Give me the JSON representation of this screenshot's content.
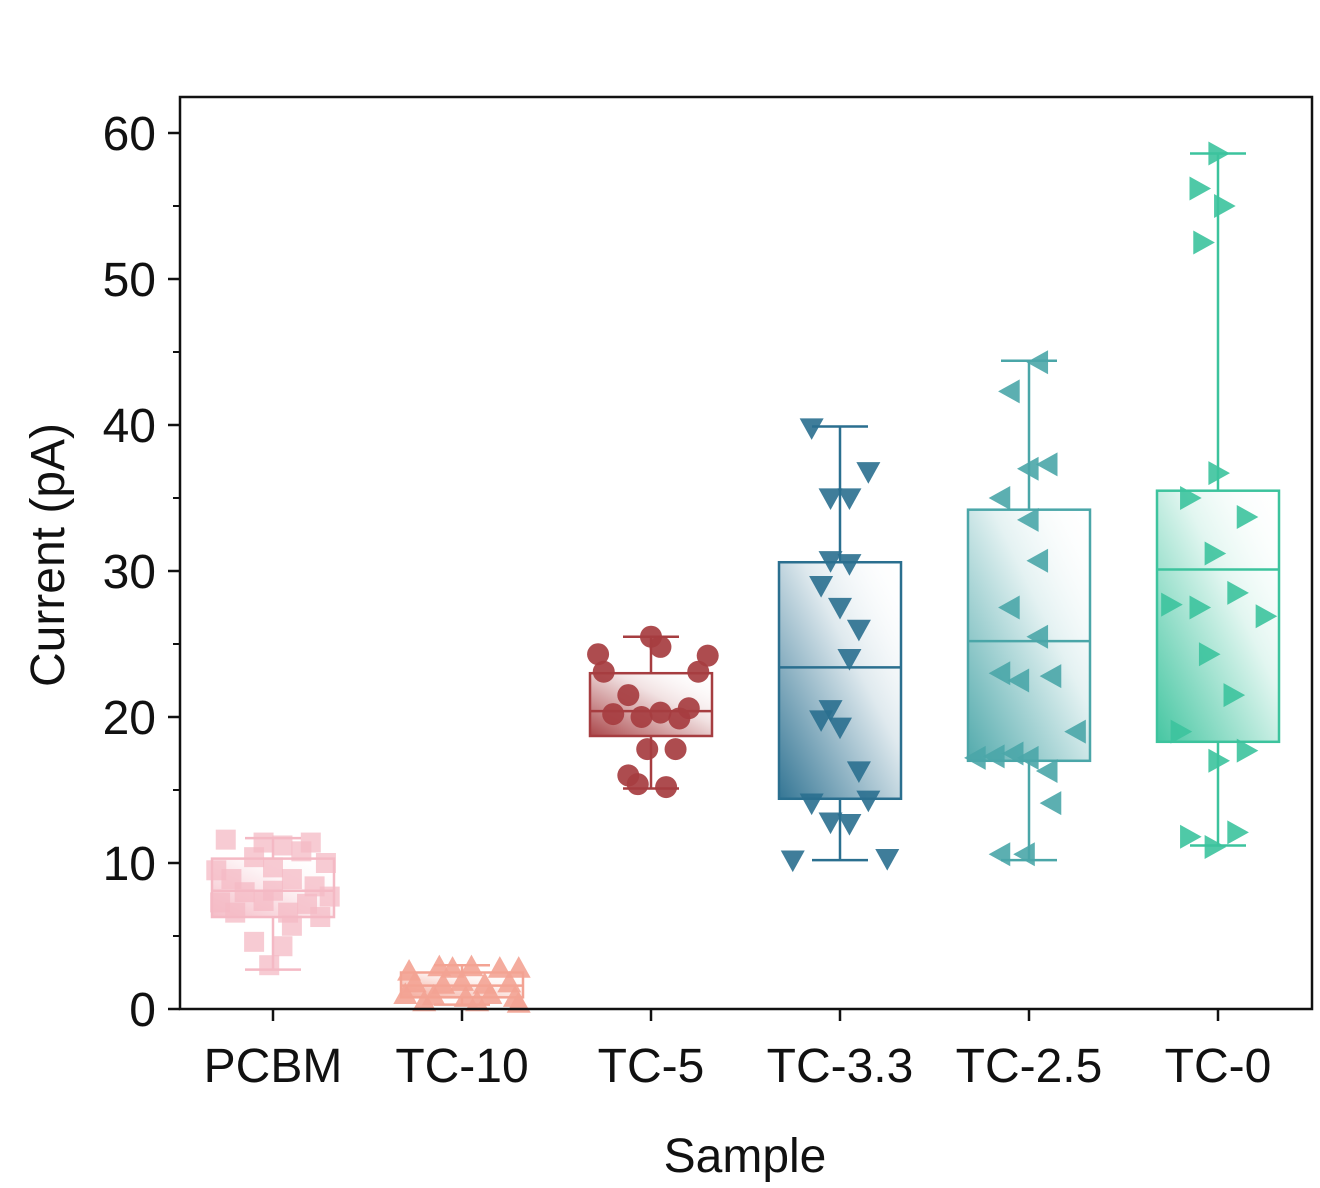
{
  "chart_data": {
    "type": "box",
    "xlabel": "Sample",
    "ylabel": "Current (pA)",
    "ylim": [
      0,
      62.5
    ],
    "yticks": [
      "0",
      "10",
      "20",
      "30",
      "40",
      "50",
      "60"
    ],
    "grid": false,
    "categories": [
      "PCBM",
      "TC-10",
      "TC-5",
      "TC-3.3",
      "TC-2.5",
      "TC-0"
    ],
    "series": [
      {
        "marker": "square",
        "color": "#f4b9c4",
        "box": {
          "min": 2.7,
          "q1": 6.3,
          "median": 8.1,
          "q3": 10.3,
          "max": 11.7
        },
        "points": [
          [
            -0.25,
            11.6
          ],
          [
            -0.05,
            11.4
          ],
          [
            0.05,
            11.2
          ],
          [
            0.2,
            11.4
          ],
          [
            0.15,
            10.8
          ],
          [
            -0.1,
            10.4
          ],
          [
            0.28,
            10.0
          ],
          [
            -0.3,
            9.5
          ],
          [
            0.0,
            9.7
          ],
          [
            -0.22,
            8.9
          ],
          [
            0.1,
            8.9
          ],
          [
            0.22,
            8.4
          ],
          [
            -0.15,
            8.0
          ],
          [
            0.0,
            8.1
          ],
          [
            0.3,
            7.7
          ],
          [
            -0.28,
            7.3
          ],
          [
            -0.05,
            7.4
          ],
          [
            0.18,
            7.2
          ],
          [
            -0.2,
            6.6
          ],
          [
            0.08,
            6.6
          ],
          [
            0.25,
            6.3
          ],
          [
            0.1,
            5.7
          ],
          [
            -0.1,
            4.6
          ],
          [
            0.05,
            4.3
          ],
          [
            -0.02,
            3.0
          ]
        ]
      },
      {
        "marker": "triangle-up",
        "color": "#f3a393",
        "box": {
          "min": 0.3,
          "q1": 0.8,
          "median": 1.6,
          "q3": 2.5,
          "max": 3.0
        },
        "points": [
          [
            -0.28,
            2.6
          ],
          [
            -0.12,
            2.9
          ],
          [
            -0.05,
            2.8
          ],
          [
            0.05,
            2.9
          ],
          [
            0.2,
            2.8
          ],
          [
            0.3,
            2.8
          ],
          [
            -0.25,
            1.8
          ],
          [
            -0.1,
            1.7
          ],
          [
            0.0,
            1.9
          ],
          [
            0.12,
            1.7
          ],
          [
            0.25,
            1.8
          ],
          [
            -0.3,
            1.0
          ],
          [
            -0.15,
            0.9
          ],
          [
            0.02,
            0.8
          ],
          [
            0.15,
            1.0
          ],
          [
            0.28,
            0.8
          ],
          [
            -0.2,
            0.5
          ],
          [
            0.08,
            0.5
          ],
          [
            0.3,
            0.4
          ]
        ]
      },
      {
        "marker": "circle",
        "color": "#a63d40",
        "box": {
          "min": 15.1,
          "q1": 18.7,
          "median": 20.4,
          "q3": 23.0,
          "max": 25.5
        },
        "points": [
          [
            0.0,
            25.5
          ],
          [
            0.05,
            24.8
          ],
          [
            -0.28,
            24.3
          ],
          [
            0.3,
            24.2
          ],
          [
            -0.25,
            23.1
          ],
          [
            0.25,
            23.1
          ],
          [
            -0.12,
            21.5
          ],
          [
            0.2,
            20.6
          ],
          [
            -0.2,
            20.2
          ],
          [
            -0.05,
            20.0
          ],
          [
            0.05,
            20.3
          ],
          [
            0.15,
            19.9
          ],
          [
            -0.02,
            17.8
          ],
          [
            0.13,
            17.8
          ],
          [
            -0.12,
            16.0
          ],
          [
            -0.07,
            15.4
          ],
          [
            0.08,
            15.2
          ]
        ]
      },
      {
        "marker": "triangle-down",
        "color": "#2a6f8f",
        "box": {
          "min": 10.2,
          "q1": 14.4,
          "median": 23.4,
          "q3": 30.6,
          "max": 39.9
        },
        "points": [
          [
            -0.15,
            39.8
          ],
          [
            0.15,
            36.8
          ],
          [
            -0.05,
            35.0
          ],
          [
            0.05,
            35.0
          ],
          [
            -0.05,
            30.7
          ],
          [
            0.05,
            30.5
          ],
          [
            -0.1,
            29.0
          ],
          [
            0.0,
            27.5
          ],
          [
            0.1,
            26.0
          ],
          [
            0.05,
            24.0
          ],
          [
            -0.05,
            20.5
          ],
          [
            -0.1,
            19.8
          ],
          [
            0.0,
            19.3
          ],
          [
            0.1,
            16.3
          ],
          [
            -0.15,
            14.1
          ],
          [
            0.15,
            14.3
          ],
          [
            -0.05,
            12.8
          ],
          [
            0.05,
            12.7
          ],
          [
            -0.25,
            10.2
          ],
          [
            0.25,
            10.3
          ]
        ]
      },
      {
        "marker": "triangle-left",
        "color": "#4aa6a8",
        "box": {
          "min": 10.2,
          "q1": 17.0,
          "median": 25.2,
          "q3": 34.2,
          "max": 44.4
        },
        "points": [
          [
            0.05,
            44.3
          ],
          [
            -0.1,
            42.3
          ],
          [
            0.0,
            37.0
          ],
          [
            0.1,
            37.3
          ],
          [
            -0.15,
            35.0
          ],
          [
            0.0,
            33.5
          ],
          [
            0.05,
            30.7
          ],
          [
            -0.1,
            27.5
          ],
          [
            0.05,
            25.5
          ],
          [
            -0.15,
            23.0
          ],
          [
            -0.05,
            22.5
          ],
          [
            0.12,
            22.8
          ],
          [
            0.25,
            19.0
          ],
          [
            -0.28,
            17.2
          ],
          [
            -0.18,
            17.3
          ],
          [
            -0.08,
            17.5
          ],
          [
            0.0,
            17.2
          ],
          [
            0.1,
            16.3
          ],
          [
            0.12,
            14.1
          ],
          [
            -0.15,
            10.6
          ],
          [
            -0.02,
            10.6
          ]
        ]
      },
      {
        "marker": "triangle-right",
        "color": "#3cc39d",
        "box": {
          "min": 11.2,
          "q1": 18.3,
          "median": 30.1,
          "q3": 35.5,
          "max": 58.6
        },
        "points": [
          [
            0.0,
            58.6
          ],
          [
            -0.1,
            56.2
          ],
          [
            0.03,
            55.0
          ],
          [
            -0.08,
            52.5
          ],
          [
            0.0,
            36.7
          ],
          [
            -0.15,
            35.0
          ],
          [
            0.15,
            33.7
          ],
          [
            -0.02,
            31.2
          ],
          [
            -0.25,
            27.7
          ],
          [
            -0.1,
            27.5
          ],
          [
            0.1,
            28.5
          ],
          [
            0.25,
            26.9
          ],
          [
            -0.05,
            24.3
          ],
          [
            0.08,
            21.5
          ],
          [
            -0.2,
            19.0
          ],
          [
            0.0,
            17.0
          ],
          [
            0.15,
            17.7
          ],
          [
            -0.15,
            11.8
          ],
          [
            0.1,
            12.1
          ],
          [
            -0.02,
            11.1
          ]
        ]
      }
    ]
  }
}
